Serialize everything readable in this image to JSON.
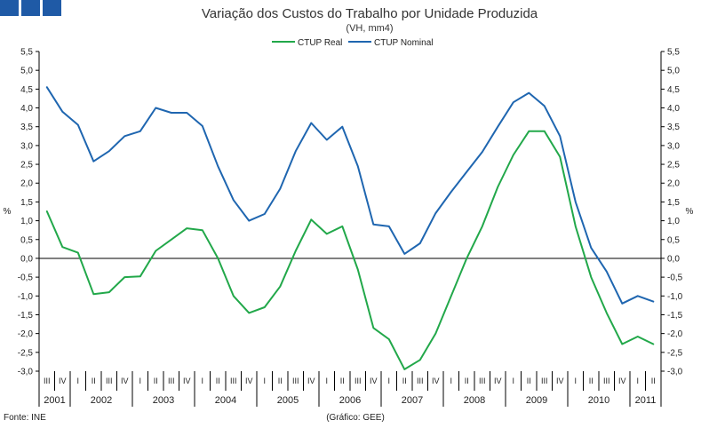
{
  "chart_data": {
    "type": "line",
    "title": "Variação dos Custos do Trabalho por Unidade Produzida",
    "subtitle": "(VH, mm4)",
    "ylabel_left": "%",
    "ylabel_right": "%",
    "ylim": [
      -3.0,
      5.5
    ],
    "yticks": [
      5.5,
      5.0,
      4.5,
      4.0,
      3.5,
      3.0,
      2.5,
      2.0,
      1.5,
      1.0,
      0.5,
      0.0,
      -0.5,
      -1.0,
      -1.5,
      -2.0,
      -2.5,
      -3.0
    ],
    "ytick_labels": [
      "5,5",
      "5,0",
      "4,5",
      "4,0",
      "3,5",
      "3,0",
      "2,5",
      "2,0",
      "1,5",
      "1,0",
      "0,5",
      "0,0",
      "-0,5",
      "-1,0",
      "-1,5",
      "-2,0",
      "-2,5",
      "-3,0"
    ],
    "quarters": [
      "III",
      "IV",
      "I",
      "II",
      "III",
      "IV",
      "I",
      "II",
      "III",
      "IV",
      "I",
      "II",
      "III",
      "IV",
      "I",
      "II",
      "III",
      "IV",
      "I",
      "II",
      "III",
      "IV",
      "I",
      "II",
      "III",
      "IV",
      "I",
      "II",
      "III",
      "IV",
      "I",
      "II",
      "III",
      "IV",
      "I",
      "II",
      "III",
      "IV",
      "I",
      "II"
    ],
    "years": [
      {
        "label": "2001",
        "start": 0,
        "count": 2
      },
      {
        "label": "2002",
        "start": 2,
        "count": 4
      },
      {
        "label": "2003",
        "start": 6,
        "count": 4
      },
      {
        "label": "2004",
        "start": 10,
        "count": 4
      },
      {
        "label": "2005",
        "start": 14,
        "count": 4
      },
      {
        "label": "2006",
        "start": 18,
        "count": 4
      },
      {
        "label": "2007",
        "start": 22,
        "count": 4
      },
      {
        "label": "2008",
        "start": 26,
        "count": 4
      },
      {
        "label": "2009",
        "start": 30,
        "count": 4
      },
      {
        "label": "2010",
        "start": 34,
        "count": 4
      },
      {
        "label": "2011",
        "start": 38,
        "count": 2
      }
    ],
    "series": [
      {
        "name": "CTUP Real",
        "color": "#22a84a",
        "values": [
          1.25,
          0.3,
          0.15,
          -0.95,
          -0.9,
          -0.5,
          -0.48,
          0.2,
          0.5,
          0.8,
          0.75,
          0.0,
          -1.0,
          -1.45,
          -1.3,
          -0.75,
          0.2,
          1.03,
          0.65,
          0.85,
          -0.3,
          -1.85,
          -2.15,
          -2.95,
          -2.7,
          -2.0,
          -1.0,
          0.0,
          0.85,
          1.9,
          2.75,
          3.38,
          3.38,
          2.7,
          0.85,
          -0.5,
          -1.45,
          -2.28,
          -2.08,
          -2.28
        ]
      },
      {
        "name": "CTUP Nominal",
        "color": "#1f66b0",
        "values": [
          4.55,
          3.9,
          3.55,
          2.58,
          2.85,
          3.25,
          3.38,
          4.0,
          3.87,
          3.87,
          3.52,
          2.45,
          1.55,
          1.0,
          1.18,
          1.85,
          2.85,
          3.6,
          3.15,
          3.5,
          2.45,
          0.9,
          0.85,
          0.12,
          0.4,
          1.2,
          1.77,
          2.3,
          2.83,
          3.5,
          4.15,
          4.4,
          4.05,
          3.25,
          1.5,
          0.28,
          -0.35,
          -1.2,
          -1.0,
          -1.15
        ]
      }
    ]
  },
  "footer": {
    "source": "Fonte: INE",
    "credit": "(Gráfico: GEE)"
  },
  "logo": {
    "color": "#1f5aa6"
  }
}
